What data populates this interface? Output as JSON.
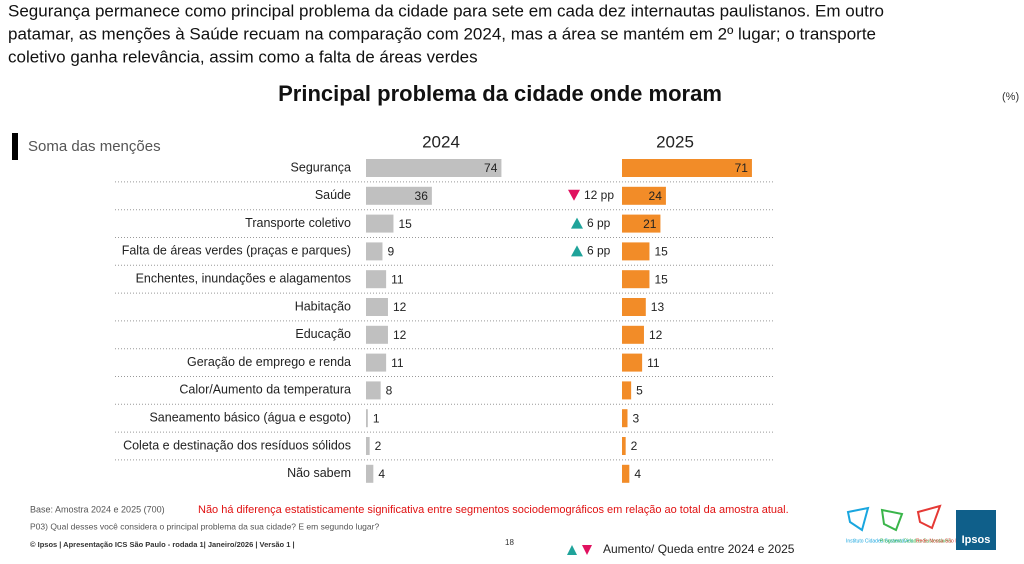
{
  "headline": [
    "Segurança permanece como principal problema da cidade para sete em cada dez internautas paulistanos. Em outro",
    "patamar, as menções à Saúde recuam na comparação com 2024, mas a área se mantém em 2º lugar; o transporte",
    "coletivo ganha relevância, assim como a falta de áreas verdes"
  ],
  "chart_data": {
    "type": "bar",
    "title": "Principal problema da cidade onde moram",
    "unit": "(%)",
    "subtitle": "Soma das menções",
    "categories": [
      "Segurança",
      "Saúde",
      "Transporte coletivo",
      "Falta de áreas verdes (praças e parques)",
      "Enchentes, inundações e alagamentos",
      "Habitação",
      "Educação",
      "Geração de emprego e renda",
      "Calor/Aumento da temperatura",
      "Saneamento básico (água e esgoto)",
      "Coleta e destinação dos resíduos sólidos",
      "Não sabem"
    ],
    "series": [
      {
        "name": "2024",
        "color": "#c0c0c0",
        "values": [
          74,
          36,
          15,
          9,
          11,
          12,
          12,
          11,
          8,
          1,
          2,
          4
        ]
      },
      {
        "name": "2025",
        "color": "#f28c28",
        "values": [
          71,
          24,
          21,
          15,
          15,
          13,
          12,
          11,
          5,
          3,
          2,
          4
        ]
      }
    ],
    "changes": [
      null,
      {
        "label": "12 pp",
        "direction": "down"
      },
      {
        "label": "6 pp",
        "direction": "up"
      },
      {
        "label": "6 pp",
        "direction": "up"
      },
      null,
      null,
      null,
      null,
      null,
      null,
      null,
      null
    ],
    "change_legend": "Aumento/ Queda entre 2024 e 2025"
  },
  "footer": {
    "base": "Base: Amostra 2024 e 2025 (700)",
    "note": "Não há diferença estatisticamente significativa entre segmentos sociodemográficos em relação ao total da amostra atual.",
    "question": "P03) Qual desses você considera o principal problema da sua cidade? E em segundo lugar?",
    "credits": "© Ipsos | Apresentação ICS São Paulo - rodada 1| Janeiro/2026 | Versão 1 |",
    "page": "18"
  },
  "logos": [
    "Instituto Cidades Sustentáveis",
    "Programa Cidades Sustentáveis",
    "Rede Nossa São Paulo",
    "Ipsos"
  ]
}
